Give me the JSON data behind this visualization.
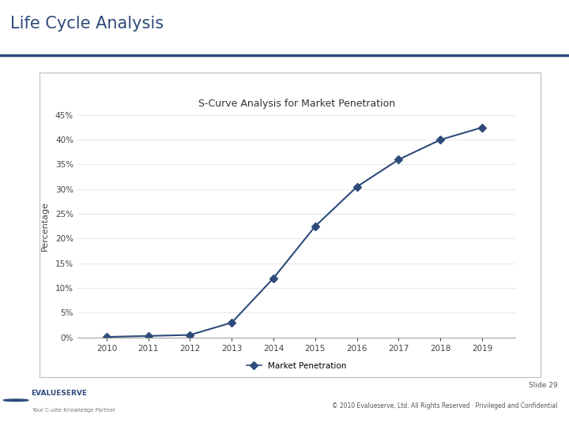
{
  "title": "Life Cycle Analysis",
  "chart_title": "S-Curve Analysis for Market Penetration",
  "years": [
    2010,
    2011,
    2012,
    2013,
    2014,
    2015,
    2016,
    2017,
    2018,
    2019
  ],
  "values": [
    0.001,
    0.003,
    0.005,
    0.03,
    0.12,
    0.225,
    0.305,
    0.36,
    0.4,
    0.425
  ],
  "ylabel": "Percentage",
  "legend_label": "Market Penetration",
  "line_color": "#2E4B7A",
  "marker": "D",
  "marker_size": 5,
  "ylim": [
    0,
    0.45
  ],
  "yticks": [
    0.0,
    0.05,
    0.1,
    0.15,
    0.2,
    0.25,
    0.3,
    0.35,
    0.4,
    0.45
  ],
  "title_color": "#2E4B7A",
  "header_line_color": "#2E4B7A",
  "background_color": "#FFFFFF",
  "chart_bg": "#FFFFFF",
  "box_border_color": "#BBBBBB",
  "footer_text": "Slide 29",
  "footer_sub": "© 2010 Evalueserve, Ltd. All Rights Reserved · Privileged and Confidential",
  "company_name": "EVALUESERVE",
  "company_sub": "Your C-uite Knowledge Partner",
  "slide_bg": "#F0F0F0"
}
